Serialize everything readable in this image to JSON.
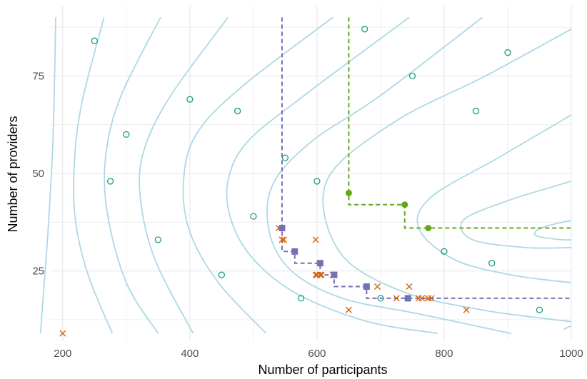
{
  "chart_data": {
    "type": "scatter",
    "title": "",
    "xlabel": "Number of participants",
    "ylabel": "Number of providers",
    "xlim": [
      180,
      1000
    ],
    "ylim": [
      7,
      93
    ],
    "x_ticks": [
      200,
      400,
      600,
      800,
      1000
    ],
    "y_ticks": [
      25,
      50,
      75
    ],
    "grid": true,
    "legend": "none",
    "colors": {
      "contour": "#add8e6",
      "open_points": "#1b9e77",
      "cross_points": "#d95f02",
      "purple": "#7570b3",
      "green": "#66a61e",
      "grid": "#ebebeb"
    },
    "contour_levels": [
      {
        "points": [
          [
            189,
            90
          ],
          [
            185,
            60
          ],
          [
            178,
            38
          ],
          [
            170,
            20
          ],
          [
            165,
            9
          ]
        ]
      },
      {
        "points": [
          [
            265,
            90
          ],
          [
            230,
            68
          ],
          [
            218,
            52
          ],
          [
            220,
            38
          ],
          [
            240,
            24
          ],
          [
            278,
            9
          ]
        ]
      },
      {
        "points": [
          [
            354,
            90
          ],
          [
            292,
            70
          ],
          [
            268,
            55
          ],
          [
            270,
            40
          ],
          [
            300,
            22
          ],
          [
            350,
            9
          ]
        ]
      },
      {
        "points": [
          [
            460,
            90
          ],
          [
            370,
            70
          ],
          [
            328,
            56
          ],
          [
            322,
            44
          ],
          [
            345,
            28
          ],
          [
            405,
            9
          ]
        ]
      },
      {
        "points": [
          [
            625,
            90
          ],
          [
            480,
            72
          ],
          [
            410,
            60
          ],
          [
            390,
            48
          ],
          [
            400,
            35
          ],
          [
            445,
            22
          ],
          [
            520,
            9
          ]
        ]
      },
      {
        "points": [
          [
            745,
            90
          ],
          [
            580,
            70
          ],
          [
            490,
            58
          ],
          [
            460,
            48
          ],
          [
            465,
            38
          ],
          [
            500,
            28
          ],
          [
            570,
            19
          ],
          [
            680,
            12
          ],
          [
            790,
            9
          ]
        ]
      },
      {
        "points": [
          [
            860,
            90
          ],
          [
            700,
            70
          ],
          [
            590,
            58
          ],
          [
            530,
            47
          ],
          [
            525,
            35
          ],
          [
            560,
            25
          ],
          [
            640,
            18
          ],
          [
            760,
            14
          ],
          [
            905,
            9
          ]
        ]
      },
      {
        "points": [
          [
            1000,
            87
          ],
          [
            865,
            75
          ],
          [
            720,
            63
          ],
          [
            615,
            48
          ],
          [
            635,
            30
          ],
          [
            730,
            20
          ],
          [
            860,
            15
          ],
          [
            1000,
            12
          ]
        ]
      },
      {
        "points": [
          [
            1000,
            65
          ],
          [
            885,
            54
          ],
          [
            780,
            44
          ],
          [
            760,
            36
          ],
          [
            815,
            28
          ],
          [
            905,
            24
          ],
          [
            1000,
            22
          ]
        ]
      },
      {
        "points": [
          [
            1000,
            48
          ],
          [
            900,
            43
          ],
          [
            830,
            38
          ],
          [
            845,
            33
          ],
          [
            930,
            31
          ],
          [
            1000,
            31
          ]
        ]
      },
      {
        "points": [
          [
            1000,
            38
          ],
          [
            952,
            36
          ],
          [
            945,
            34
          ],
          [
            985,
            33
          ],
          [
            1000,
            33
          ]
        ]
      },
      {
        "points": [
          [
            988,
            10
          ],
          [
            1000,
            11
          ]
        ]
      }
    ],
    "open_points": [
      [
        250,
        84
      ],
      [
        275,
        48
      ],
      [
        300,
        60
      ],
      [
        350,
        33
      ],
      [
        400,
        69
      ],
      [
        450,
        24
      ],
      [
        475,
        66
      ],
      [
        500,
        39
      ],
      [
        550,
        54
      ],
      [
        575,
        18
      ],
      [
        600,
        48
      ],
      [
        675,
        87
      ],
      [
        700,
        18
      ],
      [
        750,
        75
      ],
      [
        800,
        30
      ],
      [
        850,
        66
      ],
      [
        875,
        27
      ],
      [
        900,
        81
      ],
      [
        950,
        15
      ]
    ],
    "cross_points": [
      [
        200,
        9
      ],
      [
        540,
        36
      ],
      [
        545,
        33
      ],
      [
        548,
        33
      ],
      [
        598,
        24
      ],
      [
        600,
        24
      ],
      [
        605,
        24
      ],
      [
        607,
        24
      ],
      [
        598,
        33
      ],
      [
        625,
        24
      ],
      [
        650,
        15
      ],
      [
        695,
        21
      ],
      [
        725,
        18
      ],
      [
        745,
        21
      ],
      [
        760,
        18
      ],
      [
        765,
        18
      ],
      [
        775,
        18
      ],
      [
        780,
        18
      ],
      [
        835,
        15
      ]
    ],
    "purple_path": [
      [
        545,
        90
      ],
      [
        545,
        36
      ],
      [
        565,
        30
      ],
      [
        605,
        27
      ],
      [
        627,
        24
      ],
      [
        678,
        21
      ],
      [
        743,
        18
      ],
      [
        1000,
        18
      ]
    ],
    "purple_points": [
      [
        545,
        36
      ],
      [
        565,
        30
      ],
      [
        605,
        27
      ],
      [
        627,
        24
      ],
      [
        678,
        21
      ],
      [
        743,
        18
      ]
    ],
    "green_path": [
      [
        650,
        90
      ],
      [
        650,
        45
      ],
      [
        738,
        42
      ],
      [
        775,
        36
      ],
      [
        1000,
        36
      ]
    ],
    "green_points": [
      [
        650,
        45
      ],
      [
        738,
        42
      ],
      [
        775,
        36
      ]
    ]
  }
}
